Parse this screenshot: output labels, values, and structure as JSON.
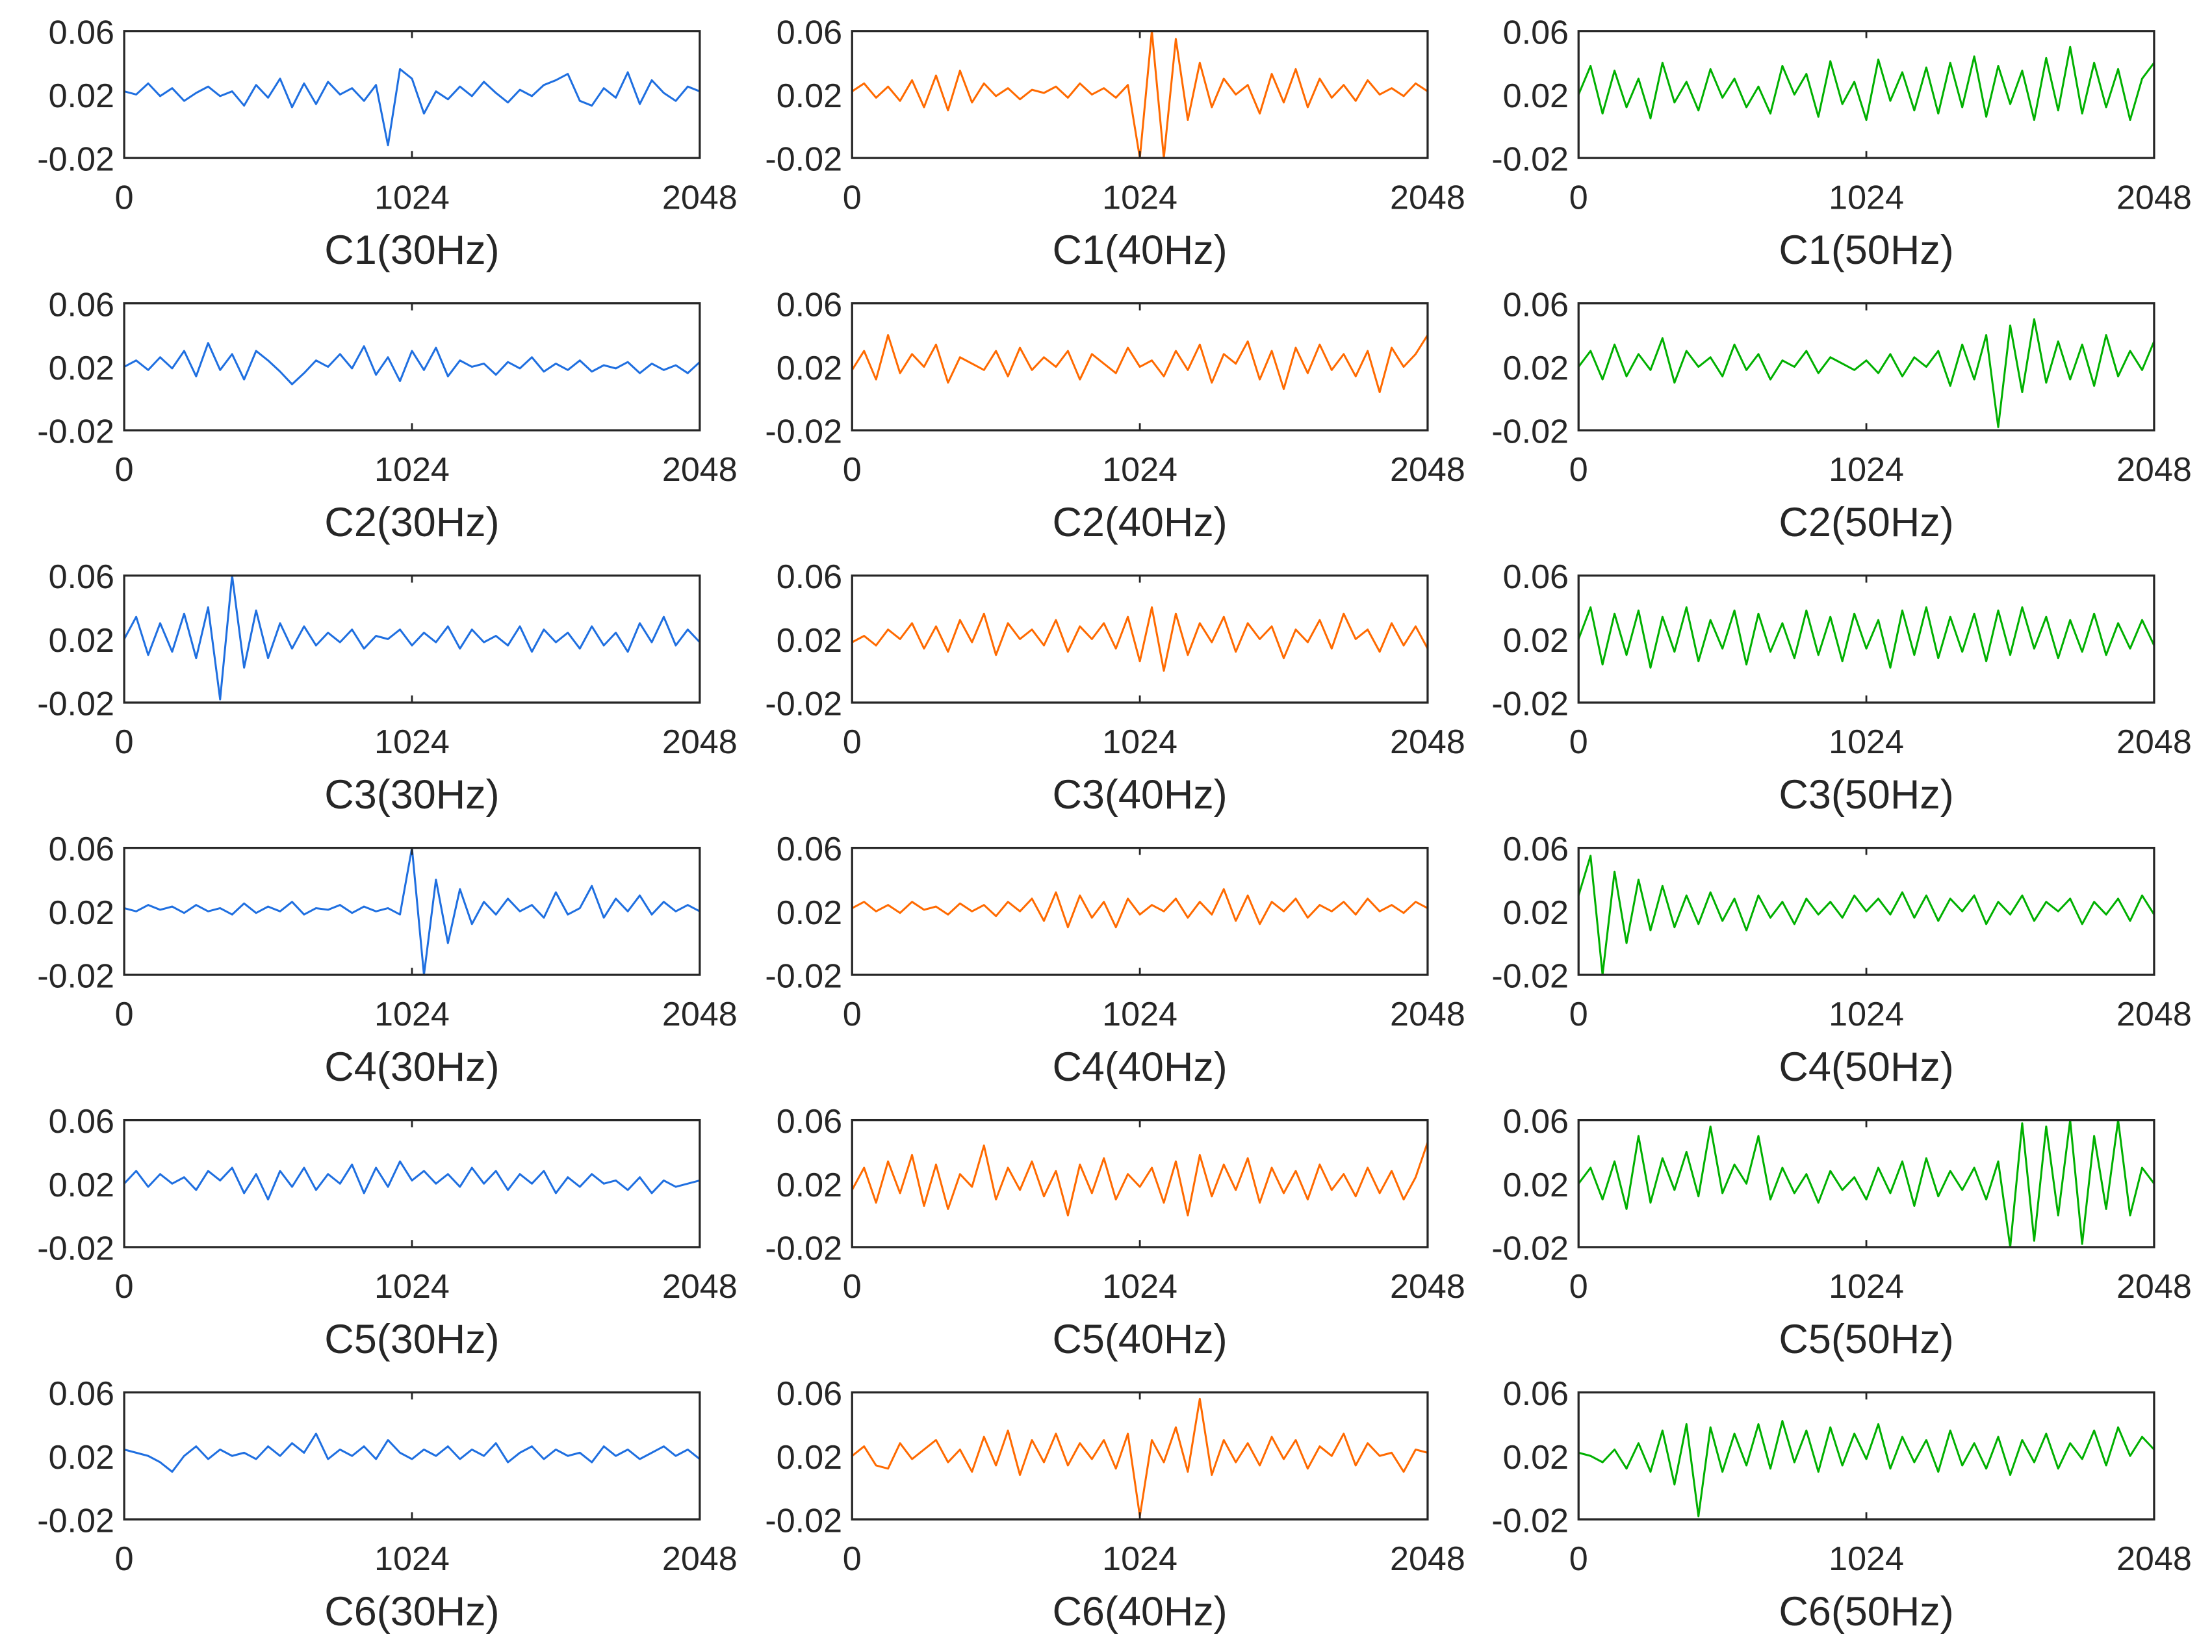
{
  "chart_data": {
    "type": "line",
    "layout": "6 rows x 3 columns grid of subplots",
    "x_range": [
      0,
      2048
    ],
    "x_ticks": [
      "0",
      "1024",
      "2048"
    ],
    "y_range": [
      -0.02,
      0.06
    ],
    "y_ticks": [
      "0.06",
      "0.02",
      "-0.02"
    ],
    "grid": false,
    "column_colors": {
      "30Hz": "#1f6fe0",
      "40Hz": "#ff6a00",
      "50Hz": "#00b000"
    },
    "note_values": "values are approximate readings at 49 evenly spaced sample positions from 0 to 2048",
    "subplots": [
      {
        "title": "C1(30Hz)",
        "color": "#1f6fe0",
        "values": [
          0.022,
          0.02,
          0.027,
          0.019,
          0.024,
          0.016,
          0.021,
          0.025,
          0.019,
          0.022,
          0.013,
          0.026,
          0.018,
          0.03,
          0.012,
          0.027,
          0.014,
          0.028,
          0.02,
          0.024,
          0.016,
          0.026,
          -0.012,
          0.036,
          0.03,
          0.008,
          0.022,
          0.017,
          0.025,
          0.019,
          0.028,
          0.021,
          0.015,
          0.023,
          0.019,
          0.026,
          0.029,
          0.033,
          0.016,
          0.013,
          0.024,
          0.018,
          0.034,
          0.014,
          0.029,
          0.021,
          0.016,
          0.025,
          0.022
        ]
      },
      {
        "title": "C1(40Hz)",
        "color": "#ff6a00",
        "values": [
          0.022,
          0.027,
          0.018,
          0.025,
          0.016,
          0.029,
          0.012,
          0.032,
          0.01,
          0.035,
          0.015,
          0.027,
          0.019,
          0.024,
          0.017,
          0.023,
          0.021,
          0.025,
          0.018,
          0.027,
          0.02,
          0.024,
          0.018,
          0.026,
          -0.02,
          0.06,
          -0.02,
          0.055,
          0.004,
          0.04,
          0.012,
          0.03,
          0.02,
          0.026,
          0.008,
          0.033,
          0.015,
          0.036,
          0.012,
          0.03,
          0.018,
          0.026,
          0.016,
          0.029,
          0.02,
          0.024,
          0.019,
          0.027,
          0.022
        ]
      },
      {
        "title": "C1(50Hz)",
        "color": "#00b000",
        "values": [
          0.02,
          0.038,
          0.008,
          0.035,
          0.012,
          0.03,
          0.005,
          0.04,
          0.015,
          0.028,
          0.01,
          0.036,
          0.018,
          0.03,
          0.012,
          0.025,
          0.008,
          0.038,
          0.02,
          0.033,
          0.006,
          0.041,
          0.014,
          0.028,
          0.004,
          0.042,
          0.016,
          0.034,
          0.01,
          0.037,
          0.008,
          0.04,
          0.012,
          0.044,
          0.006,
          0.038,
          0.014,
          0.035,
          0.004,
          0.043,
          0.01,
          0.05,
          0.008,
          0.04,
          0.012,
          0.036,
          0.004,
          0.03,
          0.04
        ]
      },
      {
        "title": "C2(30Hz)",
        "color": "#1f6fe0",
        "values": [
          0.02,
          0.024,
          0.018,
          0.026,
          0.019,
          0.03,
          0.014,
          0.035,
          0.018,
          0.028,
          0.012,
          0.03,
          0.024,
          0.017,
          0.009,
          0.016,
          0.024,
          0.02,
          0.028,
          0.019,
          0.033,
          0.015,
          0.026,
          0.011,
          0.03,
          0.018,
          0.032,
          0.014,
          0.024,
          0.02,
          0.022,
          0.015,
          0.023,
          0.019,
          0.026,
          0.017,
          0.022,
          0.018,
          0.024,
          0.017,
          0.021,
          0.019,
          0.023,
          0.016,
          0.022,
          0.018,
          0.021,
          0.016,
          0.023
        ]
      },
      {
        "title": "C2(40Hz)",
        "color": "#ff6a00",
        "values": [
          0.018,
          0.03,
          0.012,
          0.04,
          0.016,
          0.028,
          0.02,
          0.034,
          0.01,
          0.026,
          0.022,
          0.018,
          0.03,
          0.014,
          0.032,
          0.018,
          0.026,
          0.02,
          0.03,
          0.012,
          0.028,
          0.022,
          0.016,
          0.032,
          0.02,
          0.024,
          0.014,
          0.03,
          0.018,
          0.034,
          0.01,
          0.028,
          0.022,
          0.036,
          0.012,
          0.03,
          0.006,
          0.032,
          0.016,
          0.034,
          0.018,
          0.028,
          0.014,
          0.03,
          0.004,
          0.032,
          0.02,
          0.028,
          0.04
        ]
      },
      {
        "title": "C2(50Hz)",
        "color": "#00b000",
        "values": [
          0.02,
          0.03,
          0.012,
          0.034,
          0.014,
          0.028,
          0.018,
          0.038,
          0.01,
          0.03,
          0.02,
          0.026,
          0.014,
          0.034,
          0.018,
          0.028,
          0.012,
          0.024,
          0.02,
          0.03,
          0.016,
          0.026,
          0.022,
          0.018,
          0.024,
          0.016,
          0.028,
          0.014,
          0.026,
          0.02,
          0.03,
          0.008,
          0.034,
          0.012,
          0.04,
          -0.018,
          0.046,
          0.004,
          0.05,
          0.01,
          0.036,
          0.012,
          0.034,
          0.008,
          0.04,
          0.014,
          0.03,
          0.018,
          0.036
        ]
      },
      {
        "title": "C3(30Hz)",
        "color": "#1f6fe0",
        "values": [
          0.02,
          0.034,
          0.01,
          0.03,
          0.012,
          0.036,
          0.008,
          0.04,
          -0.018,
          0.06,
          0.002,
          0.038,
          0.008,
          0.03,
          0.014,
          0.028,
          0.016,
          0.024,
          0.018,
          0.026,
          0.014,
          0.022,
          0.02,
          0.026,
          0.016,
          0.024,
          0.018,
          0.028,
          0.014,
          0.026,
          0.018,
          0.022,
          0.016,
          0.028,
          0.012,
          0.026,
          0.018,
          0.024,
          0.014,
          0.028,
          0.016,
          0.024,
          0.012,
          0.03,
          0.018,
          0.034,
          0.016,
          0.026,
          0.018
        ]
      },
      {
        "title": "C3(40Hz)",
        "color": "#ff6a00",
        "values": [
          0.018,
          0.022,
          0.016,
          0.026,
          0.02,
          0.03,
          0.014,
          0.028,
          0.012,
          0.032,
          0.018,
          0.036,
          0.01,
          0.03,
          0.02,
          0.026,
          0.016,
          0.032,
          0.012,
          0.028,
          0.02,
          0.03,
          0.014,
          0.034,
          0.006,
          0.04,
          0.0,
          0.036,
          0.01,
          0.03,
          0.018,
          0.034,
          0.012,
          0.03,
          0.02,
          0.028,
          0.008,
          0.026,
          0.018,
          0.032,
          0.014,
          0.036,
          0.02,
          0.026,
          0.012,
          0.03,
          0.016,
          0.028,
          0.014
        ]
      },
      {
        "title": "C3(50Hz)",
        "color": "#00b000",
        "values": [
          0.02,
          0.04,
          0.004,
          0.036,
          0.01,
          0.038,
          0.002,
          0.034,
          0.012,
          0.04,
          0.006,
          0.032,
          0.014,
          0.038,
          0.004,
          0.036,
          0.012,
          0.03,
          0.008,
          0.038,
          0.01,
          0.034,
          0.006,
          0.036,
          0.014,
          0.032,
          0.002,
          0.038,
          0.01,
          0.04,
          0.008,
          0.034,
          0.012,
          0.036,
          0.006,
          0.038,
          0.01,
          0.04,
          0.014,
          0.034,
          0.008,
          0.032,
          0.012,
          0.036,
          0.01,
          0.03,
          0.014,
          0.032,
          0.016
        ]
      },
      {
        "title": "C4(30Hz)",
        "color": "#1f6fe0",
        "values": [
          0.022,
          0.02,
          0.024,
          0.021,
          0.023,
          0.019,
          0.024,
          0.02,
          0.022,
          0.018,
          0.025,
          0.019,
          0.023,
          0.02,
          0.026,
          0.018,
          0.022,
          0.021,
          0.024,
          0.019,
          0.023,
          0.02,
          0.022,
          0.018,
          0.06,
          -0.02,
          0.04,
          0.0,
          0.034,
          0.012,
          0.026,
          0.018,
          0.028,
          0.02,
          0.024,
          0.016,
          0.032,
          0.018,
          0.022,
          0.036,
          0.016,
          0.028,
          0.02,
          0.03,
          0.018,
          0.026,
          0.02,
          0.024,
          0.02
        ]
      },
      {
        "title": "C4(40Hz)",
        "color": "#ff6a00",
        "values": [
          0.022,
          0.026,
          0.02,
          0.024,
          0.019,
          0.026,
          0.021,
          0.023,
          0.018,
          0.025,
          0.02,
          0.024,
          0.017,
          0.026,
          0.02,
          0.028,
          0.014,
          0.032,
          0.01,
          0.03,
          0.016,
          0.026,
          0.01,
          0.028,
          0.018,
          0.024,
          0.02,
          0.028,
          0.016,
          0.026,
          0.018,
          0.034,
          0.014,
          0.03,
          0.012,
          0.026,
          0.02,
          0.028,
          0.016,
          0.024,
          0.02,
          0.026,
          0.018,
          0.028,
          0.02,
          0.024,
          0.019,
          0.026,
          0.022
        ]
      },
      {
        "title": "C4(50Hz)",
        "color": "#00b000",
        "values": [
          0.03,
          0.055,
          -0.02,
          0.045,
          0.0,
          0.04,
          0.008,
          0.036,
          0.01,
          0.03,
          0.012,
          0.032,
          0.014,
          0.028,
          0.008,
          0.03,
          0.016,
          0.026,
          0.012,
          0.028,
          0.018,
          0.026,
          0.016,
          0.03,
          0.02,
          0.028,
          0.018,
          0.032,
          0.016,
          0.03,
          0.014,
          0.028,
          0.02,
          0.03,
          0.012,
          0.026,
          0.018,
          0.03,
          0.014,
          0.026,
          0.02,
          0.028,
          0.012,
          0.026,
          0.018,
          0.028,
          0.014,
          0.03,
          0.018
        ]
      },
      {
        "title": "C5(30Hz)",
        "color": "#1f6fe0",
        "values": [
          0.02,
          0.028,
          0.018,
          0.026,
          0.02,
          0.024,
          0.016,
          0.028,
          0.022,
          0.03,
          0.014,
          0.026,
          0.01,
          0.028,
          0.018,
          0.03,
          0.016,
          0.026,
          0.02,
          0.032,
          0.014,
          0.03,
          0.018,
          0.034,
          0.022,
          0.028,
          0.02,
          0.026,
          0.018,
          0.03,
          0.02,
          0.028,
          0.016,
          0.026,
          0.02,
          0.028,
          0.014,
          0.024,
          0.018,
          0.026,
          0.02,
          0.022,
          0.016,
          0.024,
          0.014,
          0.022,
          0.018,
          0.02,
          0.022
        ]
      },
      {
        "title": "C5(40Hz)",
        "color": "#ff6a00",
        "values": [
          0.016,
          0.03,
          0.008,
          0.034,
          0.014,
          0.038,
          0.006,
          0.032,
          0.004,
          0.026,
          0.018,
          0.044,
          0.01,
          0.03,
          0.016,
          0.034,
          0.012,
          0.028,
          0.0,
          0.032,
          0.014,
          0.036,
          0.01,
          0.026,
          0.018,
          0.03,
          0.008,
          0.034,
          0.0,
          0.038,
          0.012,
          0.032,
          0.016,
          0.036,
          0.008,
          0.03,
          0.014,
          0.028,
          0.01,
          0.032,
          0.016,
          0.026,
          0.012,
          0.03,
          0.014,
          0.028,
          0.01,
          0.024,
          0.046
        ]
      },
      {
        "title": "C5(50Hz)",
        "color": "#00b000",
        "values": [
          0.02,
          0.03,
          0.01,
          0.034,
          0.004,
          0.05,
          0.008,
          0.036,
          0.016,
          0.04,
          0.012,
          0.056,
          0.014,
          0.032,
          0.02,
          0.05,
          0.01,
          0.03,
          0.014,
          0.026,
          0.008,
          0.028,
          0.016,
          0.024,
          0.01,
          0.03,
          0.014,
          0.034,
          0.006,
          0.036,
          0.012,
          0.028,
          0.016,
          0.03,
          0.01,
          0.034,
          -0.02,
          0.058,
          -0.016,
          0.056,
          0.0,
          0.06,
          -0.018,
          0.05,
          0.004,
          0.06,
          0.0,
          0.03,
          0.02
        ]
      },
      {
        "title": "C6(30Hz)",
        "color": "#1f6fe0",
        "values": [
          0.024,
          0.022,
          0.02,
          0.016,
          0.01,
          0.02,
          0.026,
          0.018,
          0.024,
          0.02,
          0.022,
          0.018,
          0.026,
          0.02,
          0.028,
          0.022,
          0.034,
          0.018,
          0.024,
          0.02,
          0.026,
          0.018,
          0.03,
          0.022,
          0.018,
          0.024,
          0.02,
          0.026,
          0.018,
          0.024,
          0.02,
          0.028,
          0.016,
          0.022,
          0.026,
          0.018,
          0.024,
          0.02,
          0.022,
          0.016,
          0.026,
          0.02,
          0.024,
          0.018,
          0.022,
          0.026,
          0.02,
          0.024,
          0.018
        ]
      },
      {
        "title": "C6(40Hz)",
        "color": "#ff6a00",
        "values": [
          0.02,
          0.026,
          0.014,
          0.012,
          0.028,
          0.018,
          0.024,
          0.03,
          0.016,
          0.024,
          0.01,
          0.032,
          0.014,
          0.036,
          0.008,
          0.03,
          0.016,
          0.034,
          0.014,
          0.028,
          0.018,
          0.03,
          0.012,
          0.034,
          -0.018,
          0.03,
          0.016,
          0.038,
          0.01,
          0.056,
          0.008,
          0.03,
          0.016,
          0.028,
          0.014,
          0.032,
          0.018,
          0.03,
          0.012,
          0.026,
          0.02,
          0.034,
          0.014,
          0.028,
          0.02,
          0.022,
          0.01,
          0.024,
          0.022
        ]
      },
      {
        "title": "C6(50Hz)",
        "color": "#00b000",
        "values": [
          0.022,
          0.02,
          0.016,
          0.024,
          0.012,
          0.028,
          0.01,
          0.036,
          0.002,
          0.04,
          -0.018,
          0.038,
          0.01,
          0.034,
          0.014,
          0.04,
          0.012,
          0.042,
          0.016,
          0.036,
          0.01,
          0.038,
          0.014,
          0.034,
          0.018,
          0.04,
          0.012,
          0.032,
          0.016,
          0.03,
          0.01,
          0.036,
          0.014,
          0.028,
          0.012,
          0.032,
          0.008,
          0.03,
          0.016,
          0.034,
          0.012,
          0.028,
          0.018,
          0.036,
          0.014,
          0.038,
          0.02,
          0.032,
          0.024
        ]
      }
    ]
  }
}
